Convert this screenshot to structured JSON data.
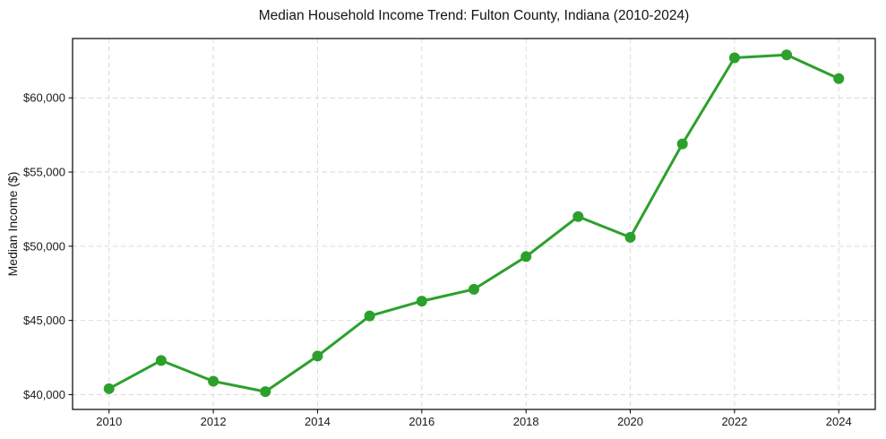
{
  "chart_data": {
    "type": "line",
    "title": "Median Household Income Trend: Fulton County, Indiana (2010-2024)",
    "xlabel": "",
    "ylabel": "Median Income ($)",
    "x": [
      2010,
      2011,
      2012,
      2013,
      2014,
      2015,
      2016,
      2017,
      2018,
      2019,
      2020,
      2021,
      2022,
      2023,
      2024
    ],
    "series": [
      {
        "name": "Median Household Income",
        "values": [
          40400,
          42300,
          40900,
          40200,
          42600,
          45300,
          46300,
          47100,
          49300,
          52000,
          50600,
          56900,
          62700,
          62900,
          61300
        ]
      }
    ],
    "xticks": [
      2010,
      2012,
      2014,
      2016,
      2018,
      2020,
      2022,
      2024
    ],
    "xtick_labels": [
      "2010",
      "2012",
      "2014",
      "2016",
      "2018",
      "2020",
      "2022",
      "2024"
    ],
    "yticks": [
      40000,
      45000,
      50000,
      55000,
      60000
    ],
    "ytick_labels": [
      "$40,000",
      "$45,000",
      "$50,000",
      "$55,000",
      "$60,000"
    ],
    "xlim": [
      2009.3,
      2024.7
    ],
    "ylim": [
      39000,
      64000
    ],
    "grid": true,
    "grid_style": "dashed",
    "legend": false,
    "line_color": "#2ca02c",
    "marker": "o",
    "grid_color": "#d9d9d9",
    "axis_color": "#000000"
  }
}
